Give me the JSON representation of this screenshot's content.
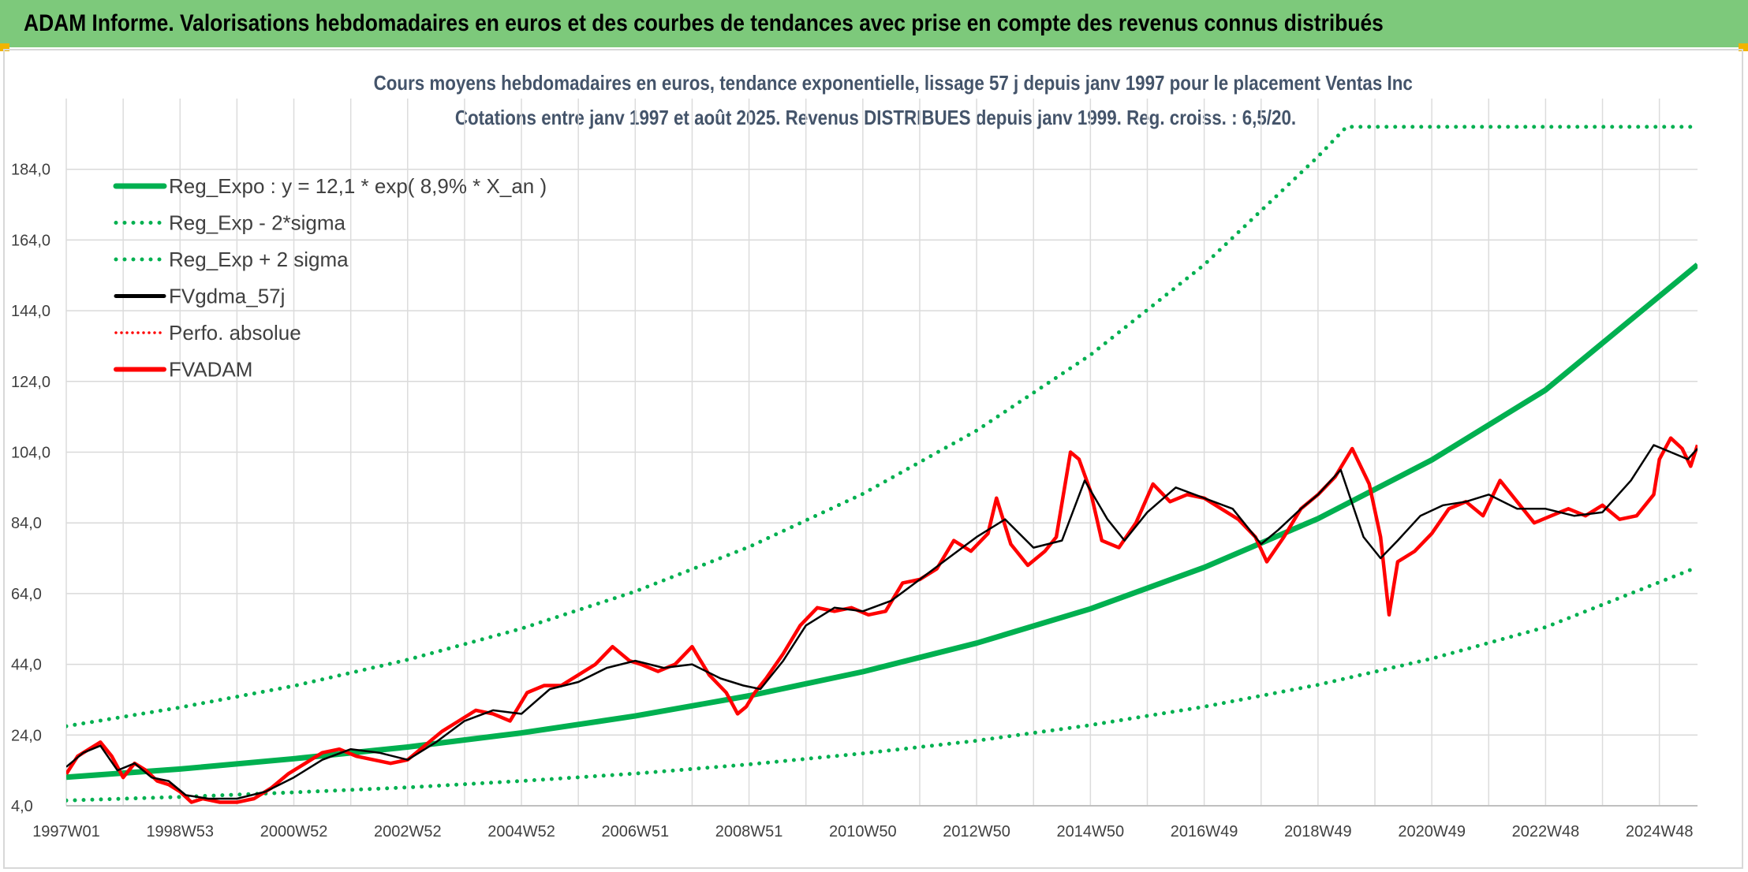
{
  "header": {
    "title": "ADAM Informe. Valorisations hebdomadaires en euros et des courbes de tendances avec prise en compte des revenus connus distribués"
  },
  "chart_data": {
    "type": "line",
    "title": "Cours moyens hebdomadaires en euros, tendance exponentielle, lissage 57 j depuis janv 1997 pour le placement Ventas Inc",
    "subtitle": "Cotations entre janv 1997 et août 2025. Revenus DISTRIBUES depuis janv 1999. Reg. croiss. : 6,5/20.",
    "ylim": [
      4,
      204
    ],
    "y_ticks": [
      "4,0",
      "24,0",
      "44,0",
      "64,0",
      "84,0",
      "104,0",
      "124,0",
      "144,0",
      "164,0",
      "184,0"
    ],
    "y_tick_values": [
      4,
      24,
      44,
      64,
      84,
      104,
      124,
      144,
      164,
      184
    ],
    "x_range": [
      1997.0,
      2025.67
    ],
    "x_ticks": [
      "1997W01",
      "1998W53",
      "2000W52",
      "2002W52",
      "2004W52",
      "2006W51",
      "2008W51",
      "2010W50",
      "2012W50",
      "2014W50",
      "2016W49",
      "2018W49",
      "2020W49",
      "2022W48",
      "2024W48"
    ],
    "x_tick_years": [
      1997,
      1999,
      2001,
      2003,
      2005,
      2007,
      2009,
      2011,
      2013,
      2015,
      2017,
      2019,
      2021,
      2023,
      2025
    ],
    "grid": true,
    "legend_position": "top-left",
    "series": [
      {
        "name": "Reg_Expo : y = 12,1 * exp( 8,9% *  X_an )",
        "color": "#00b050",
        "style": "solid",
        "x": [
          1997.0,
          1999.0,
          2001.0,
          2003.0,
          2005.0,
          2007.0,
          2009.0,
          2011.0,
          2013.0,
          2015.0,
          2017.0,
          2019.0,
          2021.0,
          2023.0,
          2025.67
        ],
        "y": [
          12.1,
          14.4,
          17.3,
          20.6,
          24.6,
          29.4,
          35.1,
          41.9,
          50.0,
          59.7,
          71.4,
          85.2,
          101.8,
          121.6,
          157.0
        ]
      },
      {
        "name": "Reg_Exp - 2*sigma",
        "color": "#00b050",
        "style": "dotted",
        "x": [
          1997.0,
          1999.0,
          2001.0,
          2003.0,
          2005.0,
          2007.0,
          2009.0,
          2011.0,
          2013.0,
          2015.0,
          2017.0,
          2019.0,
          2021.0,
          2023.0,
          2025.67
        ],
        "y": [
          5.5,
          6.5,
          7.8,
          9.2,
          11.0,
          13.1,
          15.7,
          18.8,
          22.4,
          26.8,
          32.0,
          38.2,
          45.6,
          54.5,
          71.5
        ]
      },
      {
        "name": "Reg_Exp + 2 sigma",
        "color": "#00b050",
        "style": "dotted",
        "x": [
          1997.0,
          1999.0,
          2001.0,
          2003.0,
          2005.0,
          2007.0,
          2009.0,
          2011.0,
          2013.0,
          2015.0,
          2017.0,
          2019.0,
          2019.5,
          2025.67
        ],
        "y": [
          26.5,
          31.8,
          37.9,
          45.3,
          54.1,
          64.6,
          77.2,
          92.2,
          110.1,
          131.5,
          157.0,
          187.6,
          196.0,
          196.0
        ]
      },
      {
        "name": "FVgdma_57j",
        "color": "#000000",
        "style": "solid",
        "x": [
          1997.0,
          1997.3,
          1997.6,
          1997.9,
          1998.2,
          1998.5,
          1998.8,
          1999.1,
          1999.5,
          2000.0,
          2000.5,
          2001.0,
          2001.5,
          2002.0,
          2002.5,
          2003.0,
          2003.5,
          2004.0,
          2004.5,
          2005.0,
          2005.5,
          2006.0,
          2006.5,
          2007.0,
          2007.5,
          2008.0,
          2008.5,
          2008.9,
          2009.2,
          2009.6,
          2010.0,
          2010.5,
          2011.0,
          2011.5,
          2012.0,
          2012.5,
          2013.0,
          2013.5,
          2014.0,
          2014.5,
          2014.9,
          2015.3,
          2015.6,
          2016.0,
          2016.5,
          2017.0,
          2017.5,
          2018.0,
          2018.3,
          2018.7,
          2019.0,
          2019.4,
          2019.8,
          2020.1,
          2020.4,
          2020.8,
          2021.2,
          2021.6,
          2022.0,
          2022.5,
          2023.0,
          2023.5,
          2024.0,
          2024.5,
          2024.9,
          2025.2,
          2025.5,
          2025.67
        ],
        "y": [
          15,
          19,
          21,
          14,
          16,
          12,
          11,
          7,
          6,
          6,
          8,
          12,
          17,
          20,
          19,
          17,
          22,
          28,
          31,
          30,
          37,
          39,
          43,
          45,
          43,
          44,
          40,
          38,
          37,
          45,
          55,
          60,
          59,
          62,
          68,
          74,
          80,
          85,
          77,
          79,
          96,
          85,
          79,
          87,
          94,
          91,
          88,
          78,
          82,
          88,
          92,
          99,
          80,
          74,
          79,
          86,
          89,
          90,
          92,
          88,
          88,
          86,
          87,
          96,
          106,
          104,
          102,
          105
        ]
      },
      {
        "name": "Perfo. absolue",
        "color": "#ff0000",
        "style": "dotted",
        "x": [],
        "y": []
      },
      {
        "name": "FVADAM",
        "color": "#ff0000",
        "style": "solid",
        "x": [
          1997.0,
          1997.2,
          1997.4,
          1997.6,
          1997.8,
          1998.0,
          1998.2,
          1998.4,
          1998.6,
          1998.8,
          1999.0,
          1999.2,
          1999.4,
          1999.7,
          2000.0,
          2000.3,
          2000.6,
          2000.9,
          2001.2,
          2001.5,
          2001.8,
          2002.1,
          2002.4,
          2002.7,
          2003.0,
          2003.3,
          2003.6,
          2003.9,
          2004.2,
          2004.5,
          2004.8,
          2005.1,
          2005.4,
          2005.7,
          2006.0,
          2006.3,
          2006.6,
          2006.9,
          2007.1,
          2007.4,
          2007.7,
          2008.0,
          2008.3,
          2008.6,
          2008.8,
          2008.95,
          2009.1,
          2009.3,
          2009.6,
          2009.9,
          2010.2,
          2010.5,
          2010.8,
          2011.1,
          2011.4,
          2011.7,
          2012.0,
          2012.3,
          2012.6,
          2012.9,
          2013.2,
          2013.35,
          2013.6,
          2013.9,
          2014.2,
          2014.4,
          2014.65,
          2014.8,
          2015.0,
          2015.2,
          2015.5,
          2015.8,
          2016.1,
          2016.4,
          2016.7,
          2017.0,
          2017.3,
          2017.6,
          2017.9,
          2018.1,
          2018.4,
          2018.7,
          2019.0,
          2019.3,
          2019.6,
          2019.9,
          2020.1,
          2020.25,
          2020.4,
          2020.7,
          2021.0,
          2021.3,
          2021.6,
          2021.9,
          2022.2,
          2022.5,
          2022.8,
          2023.1,
          2023.4,
          2023.7,
          2024.0,
          2024.3,
          2024.6,
          2024.9,
          2025.0,
          2025.2,
          2025.4,
          2025.55,
          2025.67
        ],
        "y": [
          13,
          18,
          20,
          22,
          18,
          12,
          16,
          14,
          11,
          10,
          8,
          5,
          6,
          5,
          5,
          6,
          9,
          13,
          16,
          19,
          20,
          18,
          17,
          16,
          17,
          21,
          25,
          28,
          31,
          30,
          28,
          36,
          38,
          38,
          41,
          44,
          49,
          45,
          44,
          42,
          44,
          49,
          41,
          36,
          30,
          32,
          36,
          40,
          47,
          55,
          60,
          59,
          60,
          58,
          59,
          67,
          68,
          71,
          79,
          76,
          81,
          91,
          78,
          72,
          76,
          80,
          104,
          102,
          93,
          79,
          77,
          84,
          95,
          90,
          92,
          91,
          88,
          85,
          80,
          73,
          80,
          88,
          92,
          97,
          105,
          95,
          80,
          58,
          73,
          76,
          81,
          88,
          90,
          86,
          96,
          90,
          84,
          86,
          88,
          86,
          89,
          85,
          86,
          92,
          102,
          108,
          105,
          100,
          106
        ]
      }
    ]
  }
}
